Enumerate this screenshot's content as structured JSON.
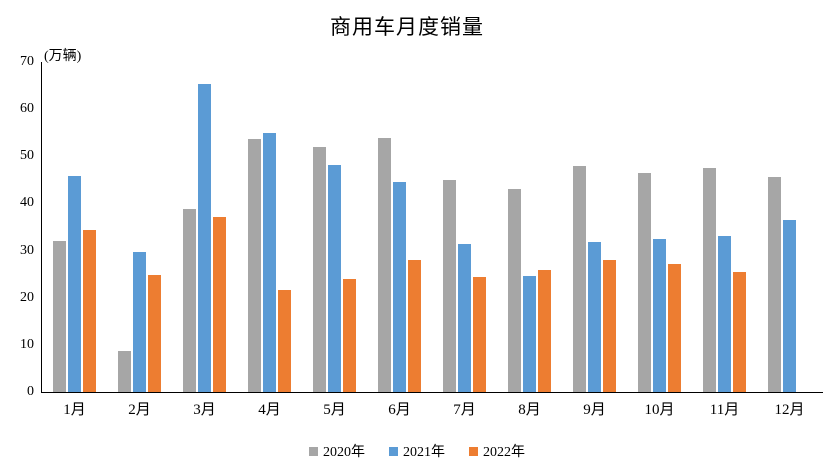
{
  "title": "商用车月度销量",
  "y_unit_label": "(万辆)",
  "chart_data": {
    "type": "bar",
    "title": "商用车月度销量",
    "xlabel": "",
    "ylabel": "(万辆)",
    "categories": [
      "1月",
      "2月",
      "3月",
      "4月",
      "5月",
      "6月",
      "7月",
      "8月",
      "9月",
      "10月",
      "11月",
      "12月"
    ],
    "series": [
      {
        "name": "2020年",
        "color": "#A6A6A6",
        "values": [
          32.0,
          8.6,
          38.9,
          53.6,
          52.0,
          53.8,
          44.9,
          43.1,
          47.9,
          46.5,
          47.5,
          45.6
        ]
      },
      {
        "name": "2021年",
        "color": "#5B9BD5",
        "values": [
          45.9,
          29.8,
          65.3,
          55.0,
          48.2,
          44.6,
          31.3,
          24.7,
          31.8,
          32.5,
          33.0,
          36.4
        ]
      },
      {
        "name": "2022年",
        "color": "#ED7D31",
        "values": [
          34.4,
          24.9,
          37.1,
          21.7,
          23.9,
          28.1,
          24.5,
          25.8,
          27.9,
          27.2,
          25.5,
          null
        ]
      }
    ],
    "ylim": [
      0,
      70
    ],
    "yticks": [
      0,
      10,
      20,
      30,
      40,
      50,
      60,
      70
    ],
    "grid": false,
    "legend_position": "bottom"
  }
}
